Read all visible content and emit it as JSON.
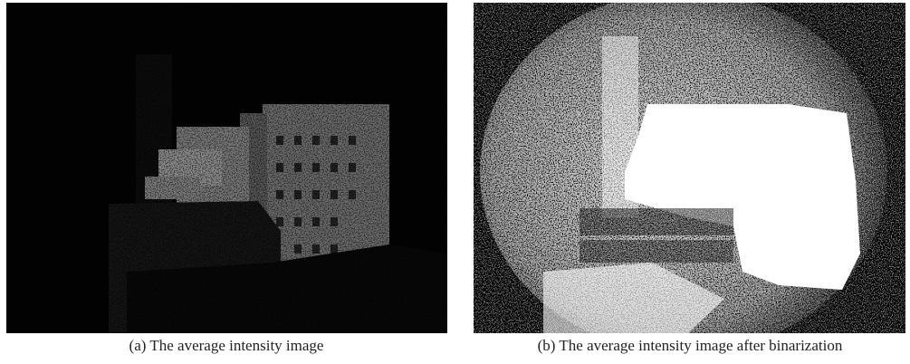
{
  "figures": [
    {
      "caption": "(a) The average intensity image"
    },
    {
      "caption": "(b) The average intensity image after binarization"
    }
  ]
}
